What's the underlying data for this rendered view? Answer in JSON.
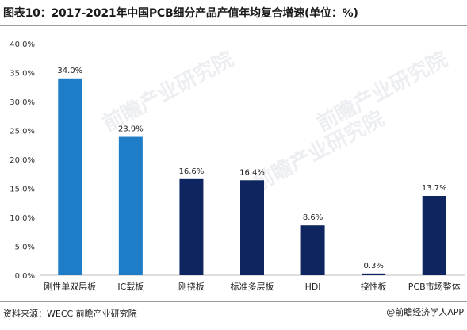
{
  "title": "图表10：2017-2021年中国PCB细分产品产值年均复合增速(单位：%)",
  "source": "资料来源：WECC 前瞻产业研究院",
  "brand": "@前瞻经济学人APP",
  "watermark": "前瞻产业研究院",
  "colors": {
    "light_blue": "#1f7dc8",
    "dark_navy": "#0e2560"
  },
  "chart_data": {
    "type": "bar",
    "categories": [
      "刚性单双层板",
      "IC载板",
      "刚挠板",
      "标准多层板",
      "HDI",
      "挠性板",
      "PCB市场整体"
    ],
    "values": [
      34.0,
      23.9,
      16.6,
      16.4,
      8.6,
      0.3,
      13.7
    ],
    "data_labels": [
      "34.0%",
      "23.9%",
      "16.6%",
      "16.4%",
      "8.6%",
      "0.3%",
      "13.7%"
    ],
    "bar_colors": [
      "#1f7dc8",
      "#1f7dc8",
      "#0e2560",
      "#0e2560",
      "#0e2560",
      "#0e2560",
      "#0e2560"
    ],
    "ylim": [
      0,
      40
    ],
    "yticks": [
      "0.0%",
      "5.0%",
      "10.0%",
      "15.0%",
      "20.0%",
      "25.0%",
      "30.0%",
      "35.0%",
      "40.0%"
    ],
    "grid": false,
    "legend": "none"
  }
}
